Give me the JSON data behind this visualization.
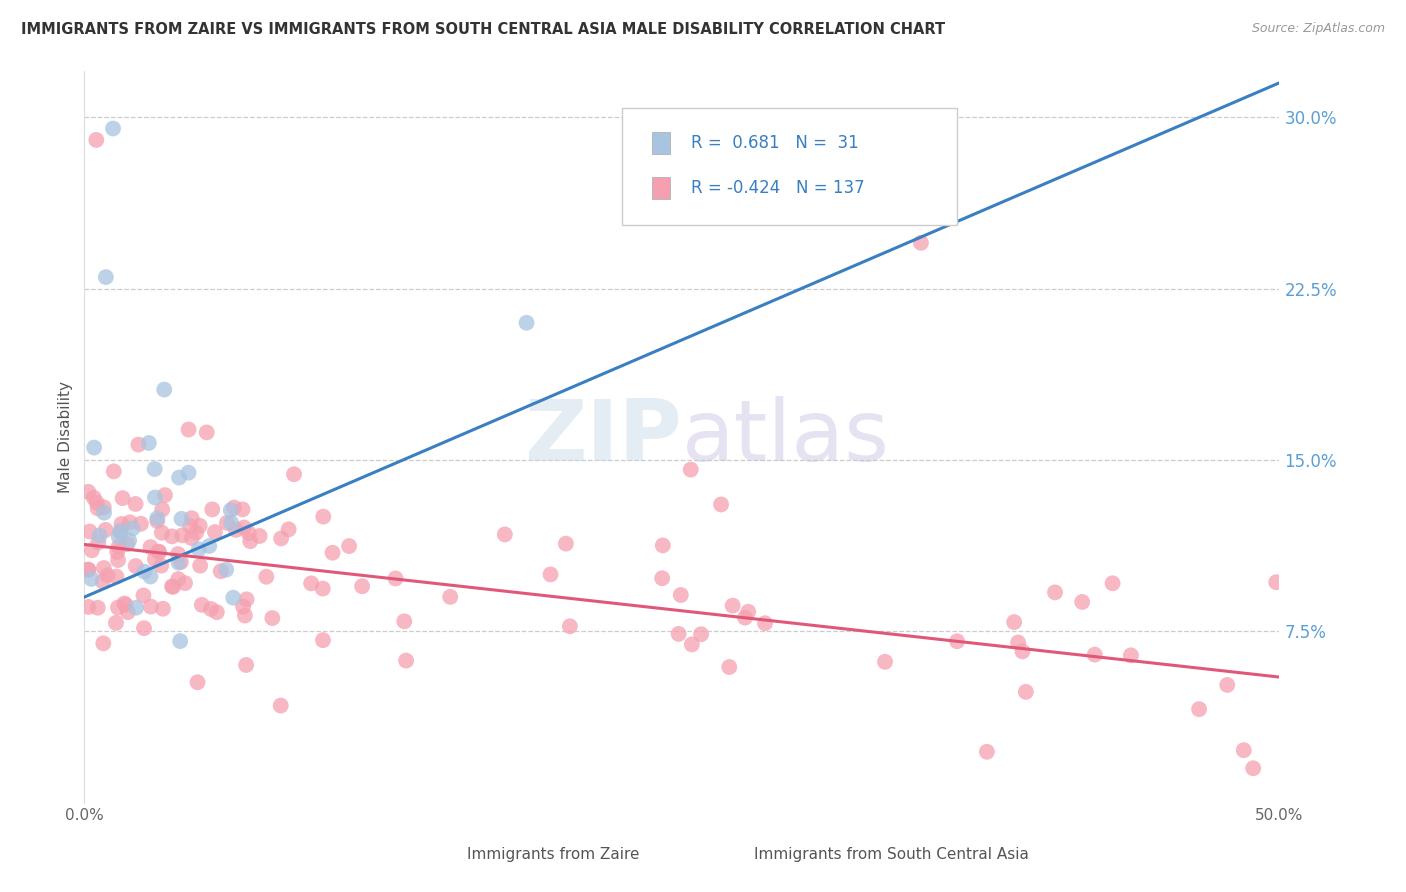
{
  "title": "IMMIGRANTS FROM ZAIRE VS IMMIGRANTS FROM SOUTH CENTRAL ASIA MALE DISABILITY CORRELATION CHART",
  "source": "Source: ZipAtlas.com",
  "ylabel": "Male Disability",
  "ytick_labels": [
    "7.5%",
    "15.0%",
    "22.5%",
    "30.0%"
  ],
  "ytick_values": [
    0.075,
    0.15,
    0.225,
    0.3
  ],
  "xlim": [
    0.0,
    0.5
  ],
  "ylim": [
    0.0,
    0.32
  ],
  "legend_zaire_R": "0.681",
  "legend_zaire_N": "31",
  "legend_sca_R": "-0.424",
  "legend_sca_N": "137",
  "zaire_color": "#a8c4e0",
  "sca_color": "#f5a0b0",
  "zaire_line_color": "#3a7fc1",
  "sca_line_color": "#e05878",
  "watermark_color": "#d0dde8",
  "zaire_seed": 10,
  "sca_seed": 20,
  "zaire_n": 31,
  "sca_n": 137,
  "zaire_line_x0": 0.0,
  "zaire_line_y0": 0.09,
  "zaire_line_x1": 0.5,
  "zaire_line_y1": 0.315,
  "sca_line_x0": 0.0,
  "sca_line_y0": 0.113,
  "sca_line_x1": 0.5,
  "sca_line_y1": 0.055
}
